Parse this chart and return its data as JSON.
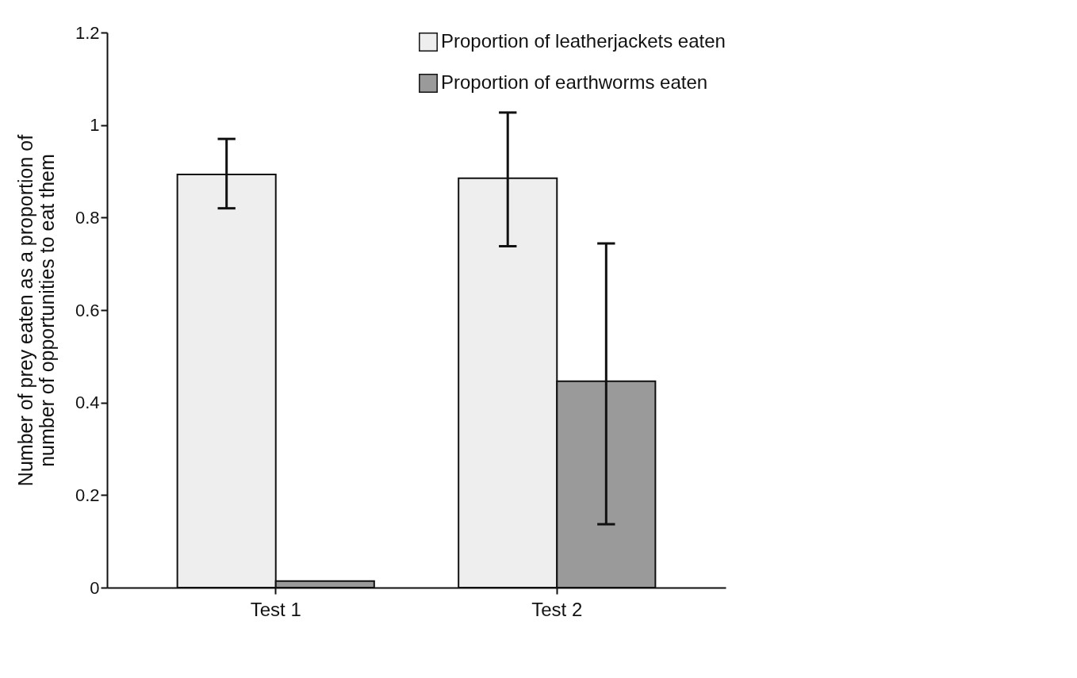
{
  "chart_data": {
    "type": "bar",
    "ylabel": "Number of prey eaten as a proportion of\nnumber of opportunities to eat them",
    "categories": [
      "Test 1",
      "Test 2"
    ],
    "series": [
      {
        "name": "Proportion of leatherjackets eaten",
        "color": "#eeeeee",
        "values": [
          0.893,
          0.885
        ],
        "errors": [
          [
            0.82,
            0.97
          ],
          [
            0.738,
            1.027
          ]
        ]
      },
      {
        "name": "Proportion of earthworms eaten",
        "color": "#9a9a9a",
        "values": [
          0.014,
          0.446
        ],
        "errors": [
          null,
          [
            0.137,
            0.744
          ]
        ]
      }
    ],
    "ylim": [
      0,
      1.2
    ],
    "yticks": [
      0,
      0.2,
      0.4,
      0.6,
      0.8,
      1,
      1.2
    ],
    "grid": false,
    "legend": "top right"
  }
}
